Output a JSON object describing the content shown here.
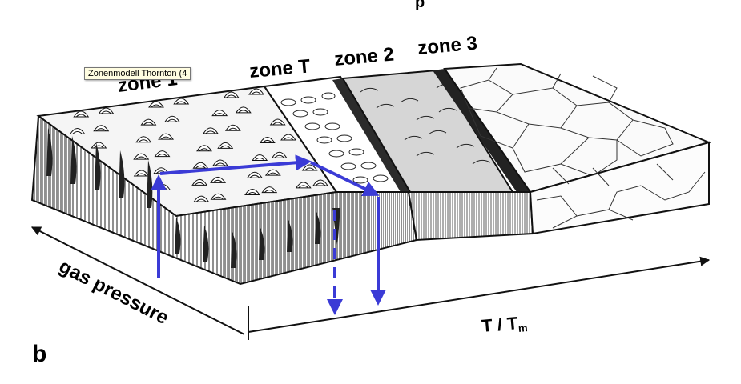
{
  "header_fragment": "p",
  "zones": {
    "zone1_label": "zone 1",
    "zoneT_label": "zone T",
    "zone2_label": "zone 2",
    "zone3_label": "zone 3"
  },
  "axes": {
    "x_label_main": "T / T",
    "x_label_sub": "m",
    "y_label": "gas pressure"
  },
  "panel_letter": "b",
  "tooltip_text": "Zonenmodell Thornton (4",
  "colors": {
    "arrow_blue": "#3b3bd6",
    "ink": "#111111",
    "tooltip_bg": "#fffde1"
  }
}
